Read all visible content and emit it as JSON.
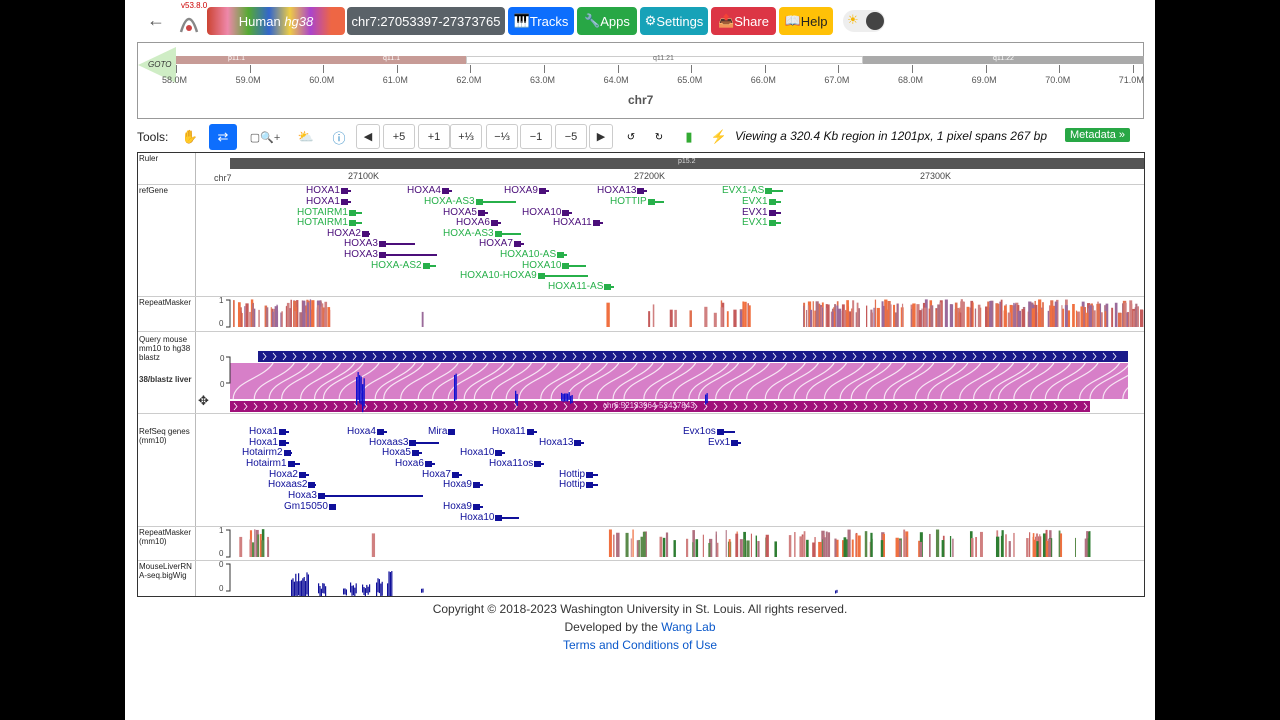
{
  "header": {
    "version": "v53.8.0",
    "genome_label": "Human",
    "genome_build": "hg38",
    "locus": "chr7:27053397-27373765",
    "buttons": {
      "tracks": "Tracks",
      "apps": "Apps",
      "settings": "Settings",
      "share": "Share",
      "help": "Help"
    },
    "colors": {
      "tracks": "#0d6efd",
      "apps": "#28a745",
      "settings": "#17a2b8",
      "share": "#dc3545",
      "help": "#ffc107",
      "locus": "#5a6268"
    }
  },
  "ideogram": {
    "goto": "GOTO",
    "bands": [
      "p11.1",
      "q11.1",
      "q11.21",
      "q11.22"
    ],
    "ticks": [
      "58.0M",
      "59.0M",
      "60.0M",
      "61.0M",
      "62.0M",
      "63.0M",
      "64.0M",
      "65.0M",
      "66.0M",
      "67.0M",
      "68.0M",
      "69.0M",
      "70.0M",
      "71.0M"
    ],
    "chrom": "chr7"
  },
  "tools": {
    "label": "Tools:",
    "zoom_buttons": [
      "+5",
      "+1",
      "+⅓",
      "−⅓",
      "−1",
      "−5"
    ],
    "status": "Viewing a 320.4 Kb region in 1201px, 1 pixel spans 267 bp",
    "metadata": "Metadata »"
  },
  "ruler": {
    "label": "Ruler",
    "chrom": "chr7",
    "band": "p15.2",
    "ticks": [
      "27100K",
      "27200K",
      "27300K"
    ]
  },
  "refgene": {
    "label": "refGene",
    "genes": [
      {
        "name": "HOXA1",
        "type": "coding"
      },
      {
        "name": "HOXA1",
        "type": "coding"
      },
      {
        "name": "HOTAIRM1",
        "type": "noncoding"
      },
      {
        "name": "HOTAIRM1",
        "type": "noncoding"
      },
      {
        "name": "HOXA2",
        "type": "coding"
      },
      {
        "name": "HOXA3",
        "type": "coding"
      },
      {
        "name": "HOXA3",
        "type": "coding"
      },
      {
        "name": "HOXA-AS2",
        "type": "noncoding"
      },
      {
        "name": "HOXA4",
        "type": "coding"
      },
      {
        "name": "HOXA-AS3",
        "type": "noncoding"
      },
      {
        "name": "HOXA5",
        "type": "coding"
      },
      {
        "name": "HOXA6",
        "type": "coding"
      },
      {
        "name": "HOXA-AS3",
        "type": "noncoding"
      },
      {
        "name": "HOXA7",
        "type": "coding"
      },
      {
        "name": "HOXA10-AS",
        "type": "noncoding"
      },
      {
        "name": "HOXA10",
        "type": "noncoding"
      },
      {
        "name": "HOXA10-HOXA9",
        "type": "noncoding"
      },
      {
        "name": "HOXA11-AS",
        "type": "noncoding"
      },
      {
        "name": "HOXA9",
        "type": "coding"
      },
      {
        "name": "HOXA10",
        "type": "coding"
      },
      {
        "name": "HOXA11",
        "type": "coding"
      },
      {
        "name": "HOXA13",
        "type": "coding"
      },
      {
        "name": "HOTTIP",
        "type": "noncoding"
      },
      {
        "name": "EVX1-AS",
        "type": "noncoding"
      },
      {
        "name": "EVX1",
        "type": "noncoding"
      },
      {
        "name": "EVX1",
        "type": "coding"
      },
      {
        "name": "EVX1",
        "type": "noncoding"
      }
    ]
  },
  "repeatmasker": {
    "label": "RepeatMasker",
    "ymax": "1",
    "ymin": "0"
  },
  "query": {
    "label": "Query mouse mm10 to hg38 blastz",
    "overlap_label": "38/blastz liver",
    "ymax": "0",
    "ymin": "0",
    "query_region": "chr6:52133964-52437843"
  },
  "refseq_mm10": {
    "label": "RefSeq genes (mm10)",
    "genes": [
      "Hoxa1",
      "Hoxa1",
      "Hotairm2",
      "Hotairm1",
      "Hoxa2",
      "Hoxaas2",
      "Hoxa3",
      "Gm15050",
      "Hoxa4",
      "Mira",
      "Hoxaas3",
      "Hoxa5",
      "Hoxa6",
      "Hoxa7",
      "Hoxa9",
      "Hoxa9",
      "Hoxa10",
      "Hoxa11",
      "Hoxa13",
      "Hoxa10",
      "Hoxa11os",
      "Hottip",
      "Hottip",
      "Evx1os",
      "Evx1"
    ]
  },
  "repeatmasker_mm10": {
    "label": "RepeatMasker (mm10)",
    "ymax": "1",
    "ymin": "0"
  },
  "rnaseq": {
    "label": "MouseLiverRNA-seq.bigWig",
    "ymax": "0",
    "ymin": "0"
  },
  "footer": {
    "copyright": "Copyright © 2018-2023 Washington University in St. Louis. All rights reserved.",
    "developed_prefix": "Developed by the",
    "lab_link": "Wang Lab",
    "terms": "Terms and Conditions of Use"
  }
}
